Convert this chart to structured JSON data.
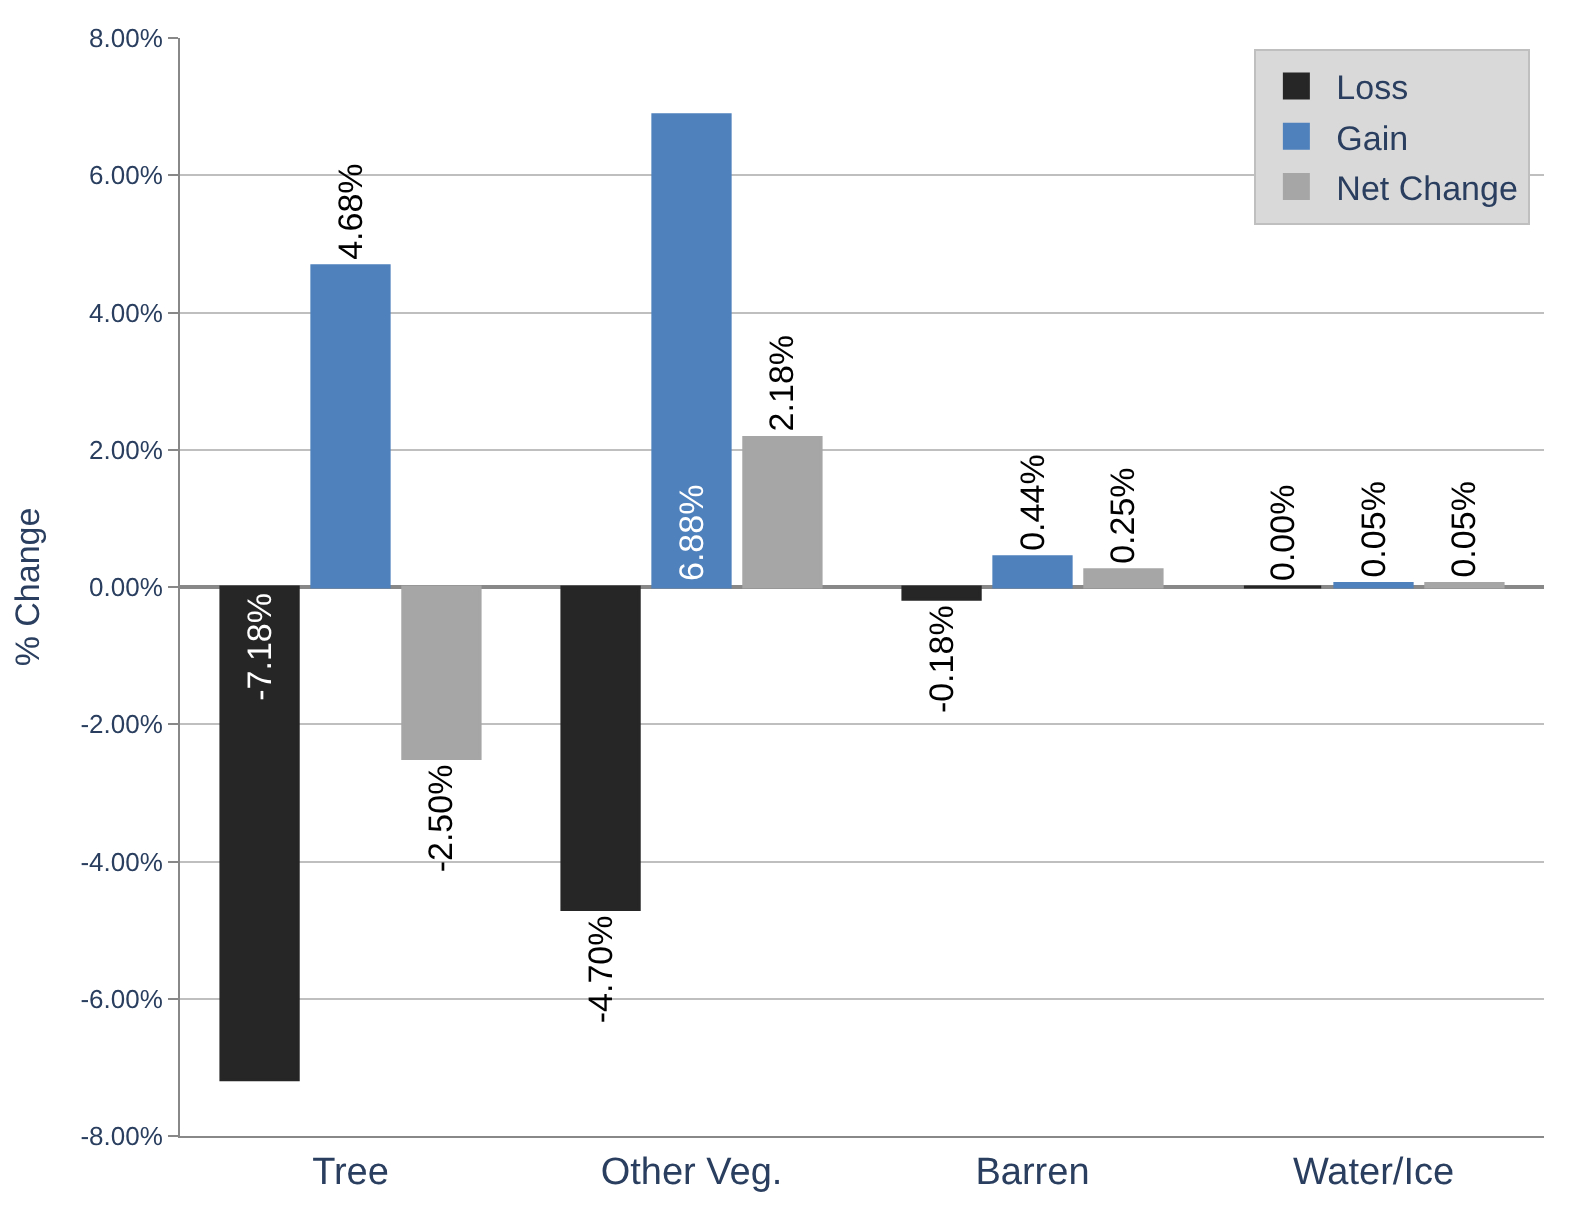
{
  "chart_data": {
    "type": "bar",
    "ylabel": "% Change",
    "categories": [
      "Tree",
      "Other Veg.",
      "Barren",
      "Water/Ice"
    ],
    "series": [
      {
        "name": "Loss",
        "color": "#262626",
        "values": [
          -7.18,
          -4.7,
          -0.18,
          0.0
        ],
        "value_labels": [
          "-7.18%",
          "-4.70%",
          "-0.18%",
          "0.00%"
        ]
      },
      {
        "name": "Gain",
        "color": "#4f81bd",
        "values": [
          4.68,
          6.88,
          0.44,
          0.05
        ],
        "value_labels": [
          "4.68%",
          "6.88%",
          "0.44%",
          "0.05%"
        ]
      },
      {
        "name": "Net Change",
        "color": "#a6a6a6",
        "values": [
          -2.5,
          2.18,
          0.25,
          0.05
        ],
        "value_labels": [
          "-2.50%",
          "2.18%",
          "0.25%",
          "0.05%"
        ]
      }
    ],
    "ylim": [
      -8,
      8
    ],
    "yticks": [
      {
        "value": -8,
        "label": "-8.00%"
      },
      {
        "value": -6,
        "label": "-6.00%"
      },
      {
        "value": -4,
        "label": "-4.00%"
      },
      {
        "value": -2,
        "label": "-2.00%"
      },
      {
        "value": 0,
        "label": "0.00%"
      },
      {
        "value": 2,
        "label": "2.00%"
      },
      {
        "value": 4,
        "label": "4.00%"
      },
      {
        "value": 6,
        "label": "6.00%"
      },
      {
        "value": 8,
        "label": "8.00%"
      }
    ],
    "grid": "y",
    "legend": "top right"
  }
}
